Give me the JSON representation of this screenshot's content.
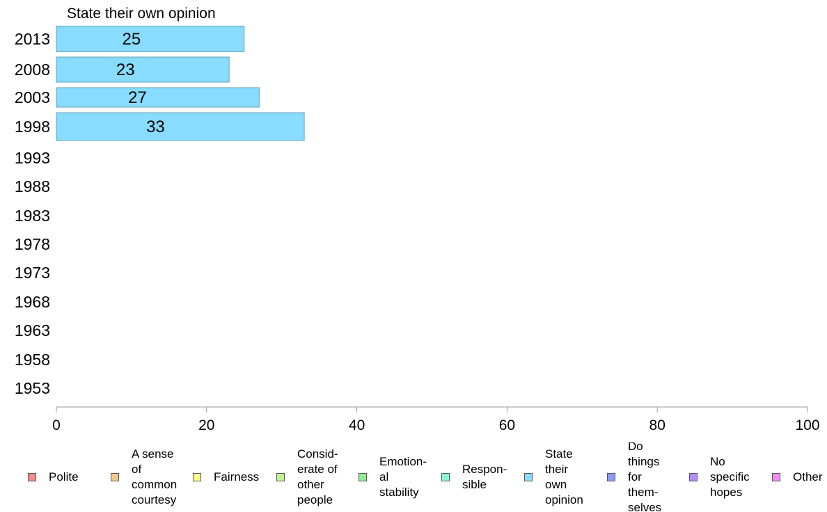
{
  "chart_data": {
    "type": "bar",
    "orientation": "horizontal",
    "title": "State their own opinion",
    "categories": [
      "2013",
      "2008",
      "2003",
      "1998",
      "1993",
      "1988",
      "1983",
      "1978",
      "1973",
      "1968",
      "1963",
      "1958",
      "1953"
    ],
    "series": [
      {
        "name": "State their own opinion",
        "color": "#87dcff",
        "values": [
          25,
          23,
          27,
          33,
          null,
          null,
          null,
          null,
          null,
          null,
          null,
          null,
          null
        ]
      }
    ],
    "data_labels": [
      "25",
      "23",
      "27",
      "33"
    ],
    "xlim": [
      0,
      100
    ],
    "xticks": [
      "0",
      "20",
      "40",
      "60",
      "80",
      "100"
    ],
    "grid": false,
    "legend_position": "bottom",
    "legend": [
      {
        "label": "Polite",
        "color": "#f08c8c"
      },
      {
        "label": "A sense\nof\ncommon\ncourtesy",
        "color": "#f5c88c"
      },
      {
        "label": "Fairness",
        "color": "#ffff8c"
      },
      {
        "label": "Consid-\nerate of\nother\npeople",
        "color": "#bcf58c"
      },
      {
        "label": "Emotion-\nal\nstability",
        "color": "#8cf08c"
      },
      {
        "label": "Respon-\nsible",
        "color": "#8cf5d2"
      },
      {
        "label": "State\ntheir\nown\nopinion",
        "color": "#87dcff"
      },
      {
        "label": "Do\nthings\nfor\nthem-\nselves",
        "color": "#8c9cf5"
      },
      {
        "label": "No\nspecific\nhopes",
        "color": "#b48cf5"
      },
      {
        "label": "Other",
        "color": "#f58cf5"
      }
    ]
  }
}
